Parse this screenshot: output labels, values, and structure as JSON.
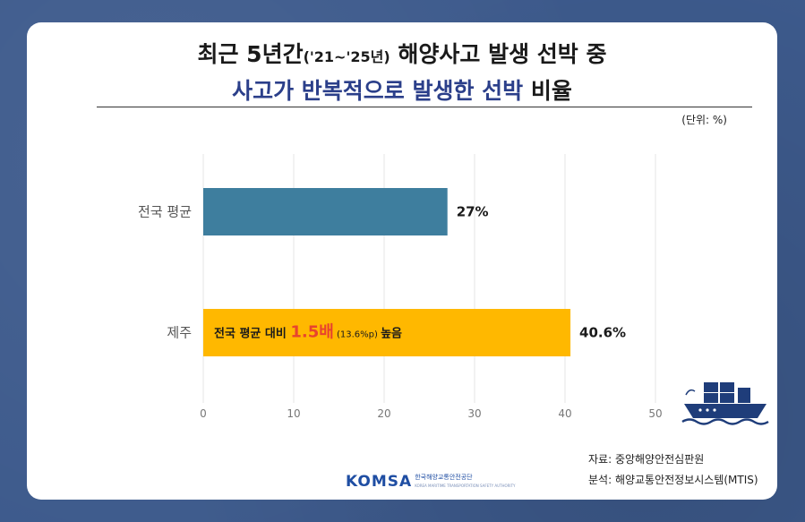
{
  "title_line1": {
    "before": "최근 5년간",
    "paren": "('21~'25년)",
    "after": "해양사고 발생 선박 중"
  },
  "title_line2": {
    "blue": "사고가 반복적으로 발생한 선박",
    "after": "비율"
  },
  "unit_label": "(단위: %)",
  "chart_data": {
    "type": "bar",
    "orientation": "horizontal",
    "categories": [
      "전국 평균",
      "제주"
    ],
    "values": [
      27,
      40.6
    ],
    "data_labels": [
      "27%",
      "40.6%"
    ],
    "xlim": [
      0,
      50
    ],
    "xticks": [
      0,
      10,
      20,
      30,
      40,
      50
    ],
    "grid": true,
    "colors": [
      "#3e7e9e",
      "#ffb800"
    ],
    "annotation": {
      "prefix": "전국 평균 대비 ",
      "highlight": "1.5배",
      "detail": " (13.6%p) ",
      "suffix": "높음",
      "highlight_color": "#e8432e"
    }
  },
  "source": {
    "line1": "자료: 중앙해양안전심판원",
    "line2": "분석: 해양교통안전정보시스템(MTIS)"
  },
  "logo": {
    "mark": "KOMSA",
    "name": "한국해양교통안전공단",
    "sub": "KOREA MARITIME TRANSPORTATION SAFETY AUTHORITY"
  }
}
